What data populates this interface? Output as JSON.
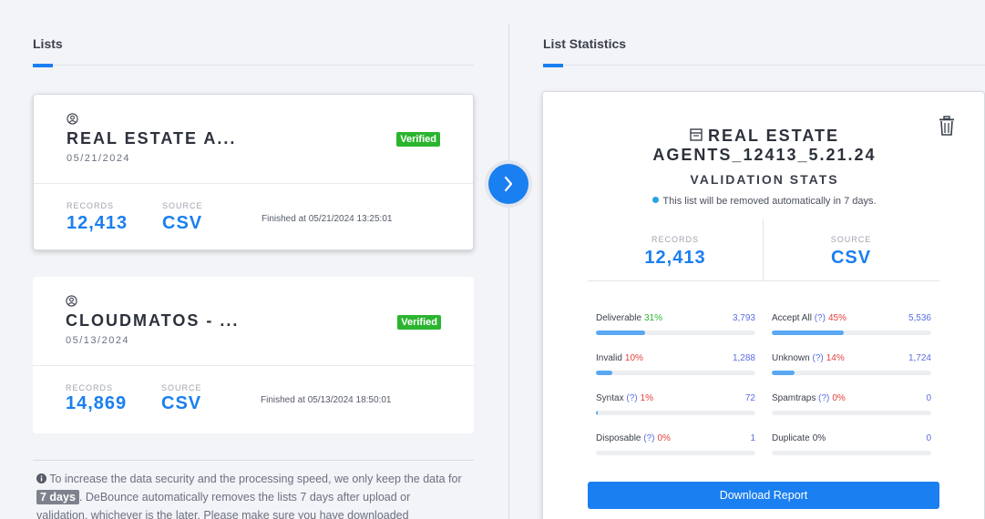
{
  "lists_header": "Lists",
  "stats_header": "List Statistics",
  "lists": [
    {
      "name": "REAL ESTATE A...",
      "date": "05/21/2024",
      "badge": "Verified",
      "records_label": "RECORDS",
      "records": "12,413",
      "source_label": "SOURCE",
      "source": "CSV",
      "finished": "Finished at 05/21/2024 13:25:01",
      "selected": true
    },
    {
      "name": "CLOUDMATOS - ...",
      "date": "05/13/2024",
      "badge": "Verified",
      "records_label": "RECORDS",
      "records": "14,869",
      "source_label": "SOURCE",
      "source": "CSV",
      "finished": "Finished at 05/13/2024 18:50:01",
      "selected": false
    }
  ],
  "note": {
    "part1": "To increase the data security and the processing speed, we only keep the data for",
    "days": "7 days",
    "part2": ". DeBounce automatically removes the lists 7 days after upload or validation, whichever is the later. Please make sure you have downloaded"
  },
  "stats": {
    "title_line1": "REAL ESTATE",
    "title_line2": "AGENTS_12413_5.21.24",
    "subtitle": "VALIDATION STATS",
    "notice": "This list will be removed automatically in 7 days.",
    "records_label": "RECORDS",
    "records": "12,413",
    "source_label": "SOURCE",
    "source": "CSV",
    "metrics": [
      {
        "label": "Deliverable",
        "help": "",
        "pct": "31%",
        "pct_color": "#2bb52f",
        "count": "3,793",
        "fill": 0.31
      },
      {
        "label": "Accept All",
        "help": "(?)",
        "pct": "45%",
        "pct_color": "#e0413c",
        "count": "5,536",
        "fill": 0.45
      },
      {
        "label": "Invalid",
        "help": "",
        "pct": "10%",
        "pct_color": "#e0413c",
        "count": "1,288",
        "fill": 0.1
      },
      {
        "label": "Unknown",
        "help": "(?)",
        "pct": "14%",
        "pct_color": "#e0413c",
        "count": "1,724",
        "fill": 0.14
      },
      {
        "label": "Syntax",
        "help": "(?)",
        "pct": "1%",
        "pct_color": "#e0413c",
        "count": "72",
        "fill": 0.01
      },
      {
        "label": "Spamtraps",
        "help": "(?)",
        "pct": "0%",
        "pct_color": "#e0413c",
        "count": "0",
        "fill": 0
      },
      {
        "label": "Disposable",
        "help": "(?)",
        "pct": "0%",
        "pct_color": "#e0413c",
        "count": "1",
        "fill": 0
      },
      {
        "label": "Duplicate",
        "help": "",
        "pct": "0%",
        "pct_color": "#3a3f4b",
        "count": "0",
        "fill": 0
      }
    ],
    "download_label": "Download Report"
  }
}
